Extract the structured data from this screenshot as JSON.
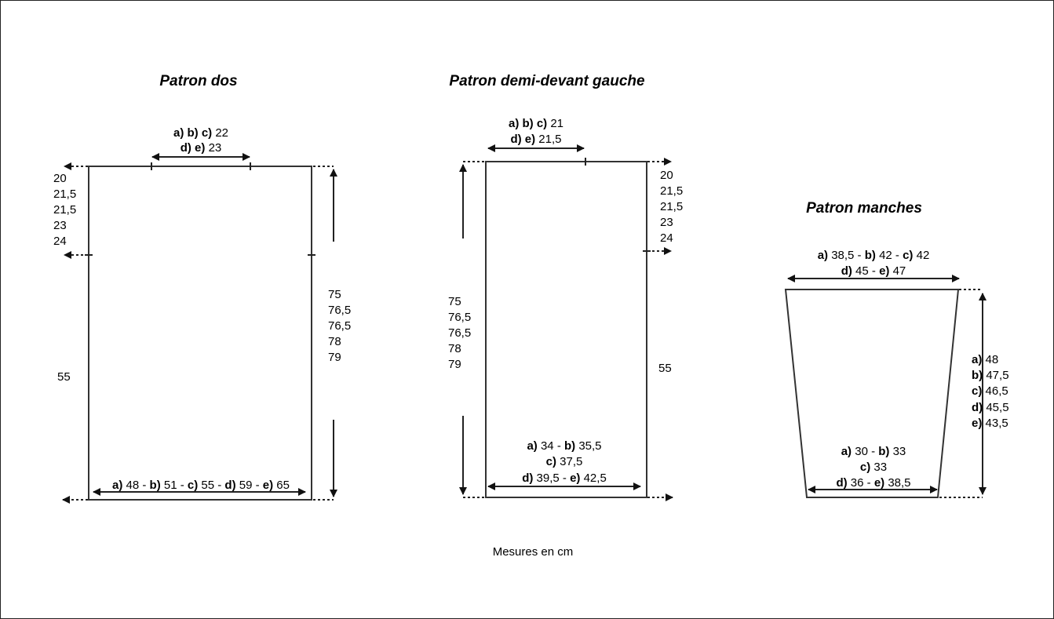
{
  "titles": {
    "back": "Patron dos",
    "front": "Patron demi-devant gauche",
    "sleeve": "Patron manches"
  },
  "back": {
    "top_width": [
      [
        {
          "t": "a) b) c)",
          "b": true
        },
        {
          "t": " 22",
          "b": false
        }
      ],
      [
        {
          "t": "d) e)",
          "b": true
        },
        {
          "t": " 23",
          "b": false
        }
      ]
    ],
    "armhole_depth": [
      "20",
      "21,5",
      "21,5",
      "23",
      "24"
    ],
    "total_length": [
      "75",
      "76,5",
      "76,5",
      "78",
      "79"
    ],
    "side_length": "55",
    "bottom_width": [
      [
        {
          "t": "a)",
          "b": true
        },
        {
          "t": " 48 - ",
          "b": false
        },
        {
          "t": "b)",
          "b": true
        },
        {
          "t": " 51 - ",
          "b": false
        },
        {
          "t": "c)",
          "b": true
        },
        {
          "t": " 55 - ",
          "b": false
        },
        {
          "t": "d)",
          "b": true
        },
        {
          "t": " 59 - ",
          "b": false
        },
        {
          "t": "e)",
          "b": true
        },
        {
          "t": " 65",
          "b": false
        }
      ]
    ]
  },
  "front": {
    "top_width": [
      [
        {
          "t": "a) b) c)",
          "b": true
        },
        {
          "t": " 21",
          "b": false
        }
      ],
      [
        {
          "t": "d) e)",
          "b": true
        },
        {
          "t": " 21,5",
          "b": false
        }
      ]
    ],
    "armhole_depth": [
      "20",
      "21,5",
      "21,5",
      "23",
      "24"
    ],
    "total_length": [
      "75",
      "76,5",
      "76,5",
      "78",
      "79"
    ],
    "side_length": "55",
    "bottom_width": [
      [
        {
          "t": "a)",
          "b": true
        },
        {
          "t": " 34 - ",
          "b": false
        },
        {
          "t": "b)",
          "b": true
        },
        {
          "t": " 35,5",
          "b": false
        }
      ],
      [
        {
          "t": "c)",
          "b": true
        },
        {
          "t": " 37,5",
          "b": false
        }
      ],
      [
        {
          "t": "d)",
          "b": true
        },
        {
          "t": " 39,5 - ",
          "b": false
        },
        {
          "t": "e)",
          "b": true
        },
        {
          "t": " 42,5",
          "b": false
        }
      ]
    ]
  },
  "sleeve": {
    "top_width": [
      [
        {
          "t": "a)",
          "b": true
        },
        {
          "t": " 38,5 - ",
          "b": false
        },
        {
          "t": "b)",
          "b": true
        },
        {
          "t": " 42 - ",
          "b": false
        },
        {
          "t": "c)",
          "b": true
        },
        {
          "t": " 42",
          "b": false
        }
      ],
      [
        {
          "t": "d)",
          "b": true
        },
        {
          "t": " 45 - ",
          "b": false
        },
        {
          "t": "e)",
          "b": true
        },
        {
          "t": " 47",
          "b": false
        }
      ]
    ],
    "length": [
      [
        {
          "t": "a)",
          "b": true
        },
        {
          "t": " 48",
          "b": false
        }
      ],
      [
        {
          "t": "b)",
          "b": true
        },
        {
          "t": " 47,5",
          "b": false
        }
      ],
      [
        {
          "t": "c)",
          "b": true
        },
        {
          "t": " 46,5",
          "b": false
        }
      ],
      [
        {
          "t": "d)",
          "b": true
        },
        {
          "t": " 45,5",
          "b": false
        }
      ],
      [
        {
          "t": "e)",
          "b": true
        },
        {
          "t": " 43,5",
          "b": false
        }
      ]
    ],
    "bottom_width": [
      [
        {
          "t": "a)",
          "b": true
        },
        {
          "t": " 30 - ",
          "b": false
        },
        {
          "t": "b)",
          "b": true
        },
        {
          "t": " 33",
          "b": false
        }
      ],
      [
        {
          "t": "c)",
          "b": true
        },
        {
          "t": " 33",
          "b": false
        }
      ],
      [
        {
          "t": "d)",
          "b": true
        },
        {
          "t": " 36 - ",
          "b": false
        },
        {
          "t": "e)",
          "b": true
        },
        {
          "t": " 38,5",
          "b": false
        }
      ]
    ]
  },
  "footer": "Mesures en cm"
}
